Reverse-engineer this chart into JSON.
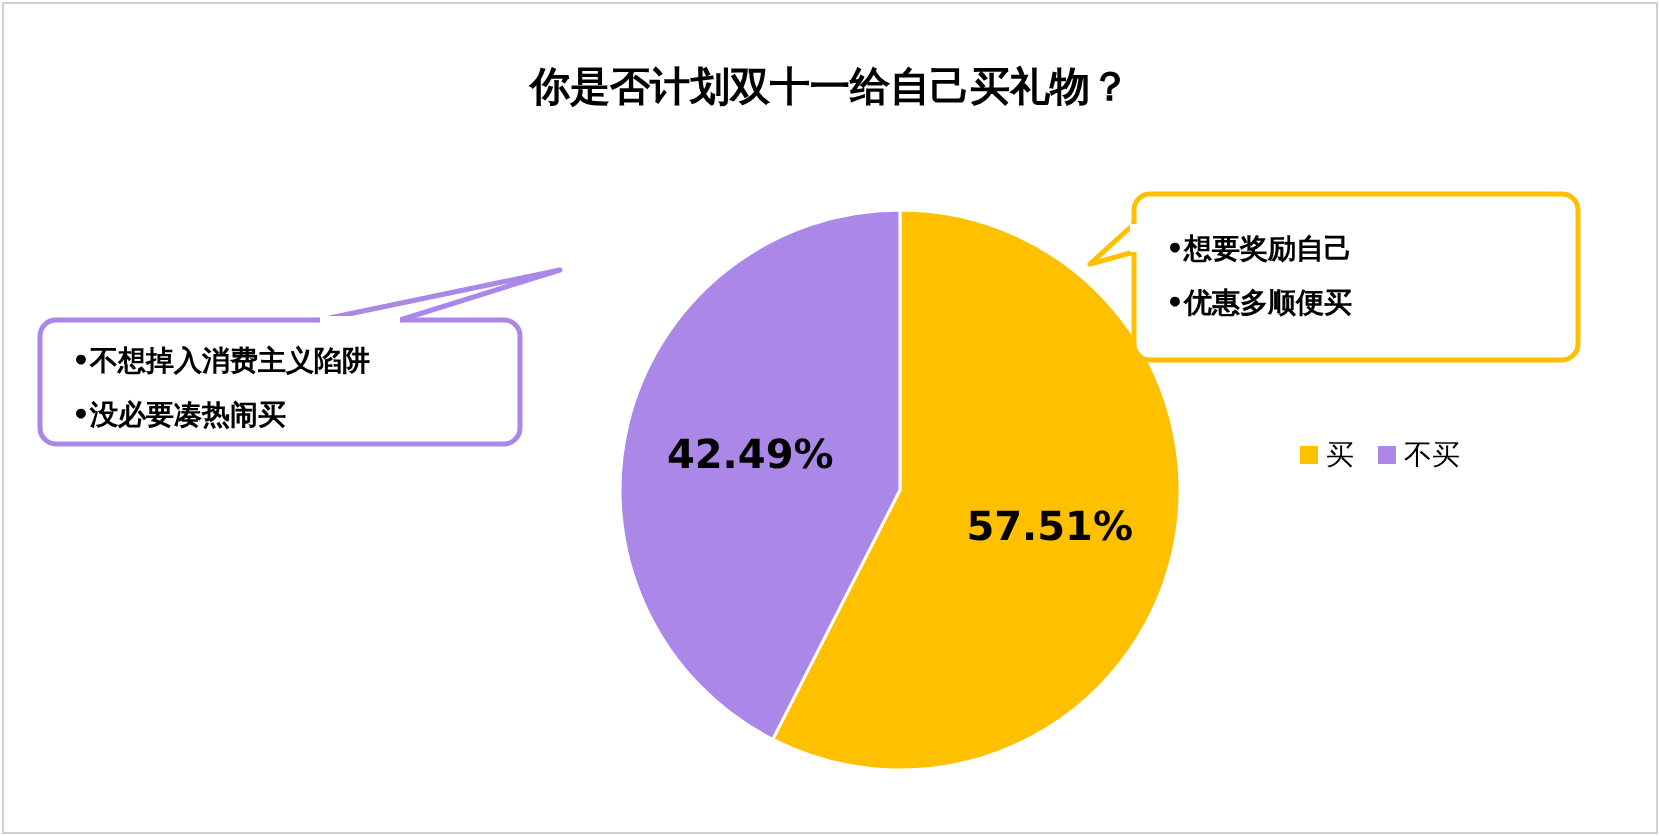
{
  "chart_data": {
    "type": "pie",
    "title": "你是否计划双十一给自己买礼物？",
    "categories": [
      "买",
      "不买"
    ],
    "values": [
      57.51,
      42.49
    ],
    "colors": [
      "#ffc000",
      "#ab87e8"
    ],
    "value_labels": [
      "57.51%",
      "42.49%"
    ],
    "legend": "right",
    "annotations": [
      "•想要奖励自己",
      "•优惠多顺便买",
      "•不想掉入消费主义陷阱",
      "•没必要凑热闹买"
    ]
  }
}
